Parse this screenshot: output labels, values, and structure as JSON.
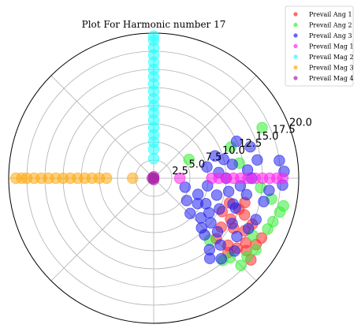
{
  "chart_data": {
    "type": "scatter",
    "projection": "polar",
    "title": "Plot For Harmonic number 17",
    "r_ticks": [
      "2.5",
      "5.0",
      "7.5",
      "10.0",
      "12.5",
      "15.0",
      "17.5",
      "20.0"
    ],
    "r_values": [
      2.5,
      5.0,
      7.5,
      10.0,
      12.5,
      15.0,
      17.5,
      20.0
    ],
    "rlim": [
      0,
      20.0
    ],
    "theta_gridlines_deg": [
      0,
      45,
      90,
      135,
      180,
      225,
      270,
      315
    ],
    "grid": true,
    "legend_position": "top-right",
    "series": [
      {
        "name": "Prevail Ang 1",
        "color": "#ff2a2a",
        "points": [
          [
            -22,
            13.5
          ],
          [
            -25,
            15.0
          ],
          [
            -30,
            14.5
          ],
          [
            -35,
            15.5
          ],
          [
            -38,
            16.2
          ],
          [
            -40,
            15.0
          ],
          [
            -32,
            13.0
          ],
          [
            -28,
            12.0
          ],
          [
            -18,
            11.0
          ],
          [
            -42,
            13.8
          ],
          [
            -45,
            14.5
          ],
          [
            -36,
            11.5
          ],
          [
            -33,
            16.8
          ],
          [
            -26,
            10.5
          ],
          [
            -20,
            12.5
          ],
          [
            -15,
            13.0
          ],
          [
            -44,
            12.0
          ],
          [
            -29,
            17.0
          ],
          [
            -40,
            17.5
          ]
        ]
      },
      {
        "name": "Prevail Ang 2",
        "color": "#33ee33",
        "points": [
          [
            -10,
            16.5
          ],
          [
            -15,
            18.0
          ],
          [
            -20,
            17.5
          ],
          [
            -12,
            18.3
          ],
          [
            -30,
            15.8
          ],
          [
            -40,
            16.8
          ],
          [
            -46,
            15.2
          ],
          [
            -50,
            14.8
          ],
          [
            25,
            16.5
          ],
          [
            28,
            5.5
          ],
          [
            22,
            11.5
          ],
          [
            -48,
            11.5
          ],
          [
            -45,
            17.0
          ],
          [
            -24,
            17.2
          ],
          [
            10,
            12.0
          ],
          [
            -5,
            14.8
          ],
          [
            -35,
            17.2
          ]
        ]
      },
      {
        "name": "Prevail Ang 3",
        "color": "#2222ee",
        "points": [
          [
            -10,
            13.0
          ],
          [
            -20,
            12.0
          ],
          [
            -30,
            12.5
          ],
          [
            -40,
            11.5
          ],
          [
            -15,
            9.0
          ],
          [
            -25,
            10.0
          ],
          [
            -35,
            14.0
          ],
          [
            -45,
            13.0
          ],
          [
            -5,
            12.0
          ],
          [
            0,
            13.5
          ],
          [
            5,
            13.0
          ],
          [
            10,
            11.0
          ],
          [
            15,
            10.0
          ],
          [
            20,
            9.0
          ],
          [
            -48,
            10.5
          ],
          [
            -50,
            14.5
          ],
          [
            -42,
            15.0
          ],
          [
            -8,
            7.5
          ],
          [
            -20,
            6.5
          ],
          [
            -30,
            7.0
          ],
          [
            -40,
            8.5
          ],
          [
            18,
            14.0
          ],
          [
            8,
            17.5
          ],
          [
            3,
            18.0
          ],
          [
            -3,
            17.8
          ],
          [
            24,
            12.5
          ],
          [
            -12,
            15.5
          ],
          [
            -28,
            14.8
          ],
          [
            -38,
            10.0
          ],
          [
            -52,
            12.5
          ],
          [
            -55,
            13.5
          ],
          [
            -10,
            10.5
          ],
          [
            -18,
            11.5
          ],
          [
            -32,
            9.0
          ],
          [
            5,
            9.0
          ],
          [
            12,
            7.5
          ],
          [
            -22,
            15.2
          ],
          [
            -46,
            9.5
          ],
          [
            -34,
            5.5
          ],
          [
            -16,
            4.5
          ],
          [
            0,
            10.0
          ],
          [
            10,
            14.5
          ],
          [
            -6,
            16.0
          ],
          [
            -44,
            7.0
          ],
          [
            -26,
            8.0
          ]
        ]
      },
      {
        "name": "Prevail Mag 1",
        "color": "#ff22ee",
        "points": [
          [
            0,
            3.6
          ],
          [
            0,
            8.0
          ],
          [
            0,
            9.0
          ],
          [
            0,
            10.0
          ],
          [
            0,
            11.0
          ],
          [
            0,
            12.0
          ],
          [
            0,
            13.0
          ],
          [
            0,
            14.0
          ],
          [
            0,
            15.0
          ],
          [
            0,
            16.0
          ],
          [
            0,
            17.0
          ],
          [
            0,
            17.8
          ]
        ]
      },
      {
        "name": "Prevail Mag 2",
        "color": "#22ffff",
        "points": [
          [
            90,
            2.7
          ],
          [
            90,
            4.0
          ],
          [
            90,
            5.0
          ],
          [
            90,
            6.0
          ],
          [
            90,
            7.0
          ],
          [
            90,
            8.0
          ],
          [
            90,
            9.0
          ],
          [
            90,
            10.0
          ],
          [
            90,
            11.0
          ],
          [
            90,
            12.0
          ],
          [
            90,
            13.0
          ],
          [
            90,
            14.0
          ],
          [
            90,
            15.0
          ],
          [
            90,
            16.0
          ],
          [
            90,
            17.0
          ],
          [
            90,
            18.0
          ],
          [
            90,
            19.0
          ],
          [
            90,
            19.6
          ]
        ]
      },
      {
        "name": "Prevail Mag 3",
        "color": "#ffaa11",
        "points": [
          [
            180,
            2.9
          ],
          [
            180,
            6.5
          ],
          [
            180,
            7.5
          ],
          [
            180,
            8.5
          ],
          [
            180,
            9.5
          ],
          [
            180,
            10.5
          ],
          [
            180,
            11.5
          ],
          [
            180,
            12.5
          ],
          [
            180,
            13.5
          ],
          [
            180,
            14.5
          ],
          [
            180,
            15.5
          ],
          [
            180,
            16.5
          ],
          [
            180,
            17.5
          ],
          [
            180,
            18.2
          ],
          [
            180,
            19.0
          ]
        ]
      },
      {
        "name": "Prevail Mag 4",
        "color": "#aa22aa",
        "points": [
          [
            0,
            0.0
          ],
          [
            90,
            0.2
          ],
          [
            180,
            0.2
          ],
          [
            270,
            0.2
          ]
        ]
      }
    ]
  }
}
